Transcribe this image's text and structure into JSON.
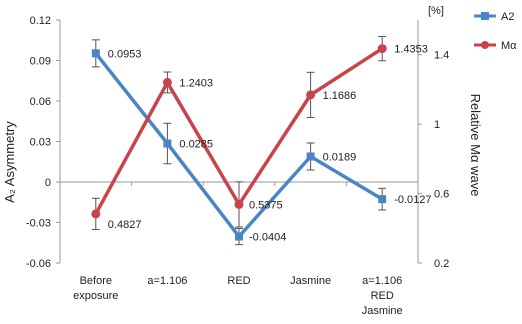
{
  "chart_data": {
    "type": "line",
    "categories": [
      [
        "Before",
        "exposure"
      ],
      [
        "a=1.106"
      ],
      [
        "RED"
      ],
      [
        "Jasmine"
      ],
      [
        "a=1.106",
        "RED",
        "Jasmine"
      ]
    ],
    "y_left": {
      "label": "A₂ Asymmetry",
      "ylim": [
        -0.06,
        0.12
      ],
      "ticks": [
        "0.12",
        "0.09",
        "0.06",
        "0.03",
        "0",
        "-0.03",
        "-0.06"
      ]
    },
    "y_right": {
      "label": "Relative  Mα wave",
      "unit": "[%]",
      "ylim": [
        0.2,
        1.6
      ],
      "ticks": [
        "1.4",
        "1",
        "0.6",
        "0.2"
      ]
    },
    "series": [
      {
        "name": "A2",
        "axis": "left",
        "color": "#4a86c5",
        "values": [
          0.0953,
          0.0285,
          -0.0404,
          0.0189,
          -0.0127
        ],
        "labels": [
          "0.0953",
          "0.0285",
          "-0.0404",
          "0.0189",
          "-0.0127"
        ],
        "errors": [
          0.01,
          0.015,
          0.006,
          0.01,
          0.008
        ]
      },
      {
        "name": "Mα",
        "axis": "right",
        "color": "#c9434b",
        "values": [
          0.4827,
          1.2403,
          0.5375,
          1.1686,
          1.4353
        ],
        "labels": [
          "0.4827",
          "1.2403",
          "0.5375",
          "1.1686",
          "1.4353"
        ],
        "errors": [
          0.09,
          0.06,
          0.13,
          0.13,
          0.07
        ]
      }
    ],
    "grid": false,
    "legend": "top-right"
  }
}
